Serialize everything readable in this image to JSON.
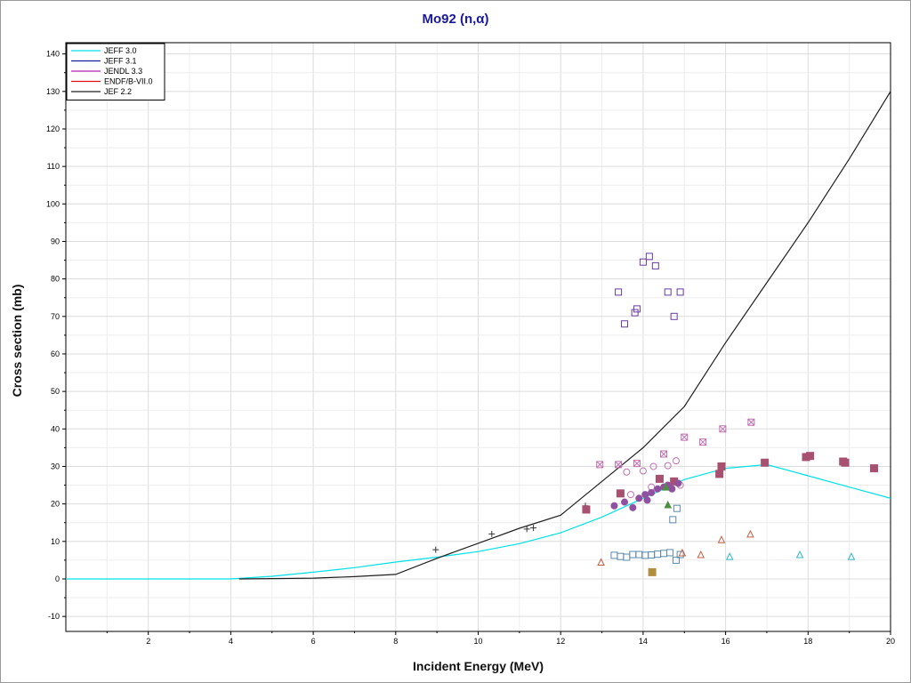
{
  "chart_data": {
    "type": "line",
    "title": "Mo92 (n,α)",
    "xlabel": "Incident Energy (MeV)",
    "ylabel": "Cross section (mb)",
    "xlim": [
      0,
      20
    ],
    "ylim": [
      -14,
      143
    ],
    "xticks": [
      2,
      4,
      6,
      8,
      10,
      12,
      14,
      16,
      18,
      20
    ],
    "yticks": [
      -10,
      0,
      10,
      20,
      30,
      40,
      50,
      60,
      70,
      80,
      90,
      100,
      110,
      120,
      130,
      140
    ],
    "grid": true,
    "legend_position": "top-left",
    "series": [
      {
        "name": "JEFF 3.0",
        "color": "#00e0e8",
        "x": [
          0,
          4,
          5,
          6,
          7,
          8,
          9,
          10,
          11,
          12,
          13,
          14,
          15,
          16,
          17,
          18,
          19,
          20
        ],
        "y": [
          0,
          0,
          0.7,
          1.8,
          3.0,
          4.5,
          5.8,
          7.3,
          9.4,
          12.3,
          16.5,
          21.5,
          26.5,
          29.5,
          30.5,
          27.5,
          24.5,
          21.5
        ]
      },
      {
        "name": "JEFF 3.1",
        "color": "#1a1aa0",
        "x": [],
        "y": []
      },
      {
        "name": "JENDL 3.3",
        "color": "#b020b0",
        "x": [],
        "y": []
      },
      {
        "name": "ENDF/B-VII.0",
        "color": "#e01010",
        "x": [],
        "y": []
      },
      {
        "name": "JEF 2.2",
        "color": "#202020",
        "x": [
          4.2,
          6,
          7,
          8,
          9,
          10,
          11,
          12,
          13,
          14,
          15,
          16,
          17,
          18,
          19,
          20
        ],
        "y": [
          0,
          0.2,
          0.6,
          1.2,
          5.5,
          9.5,
          13.5,
          17,
          26,
          35,
          46,
          63,
          79,
          95,
          112,
          130
        ]
      }
    ],
    "experimental_data": [
      {
        "marker": "plus",
        "color": "#333333",
        "points": [
          [
            8.97,
            7.8
          ],
          [
            10.33,
            12
          ],
          [
            11.18,
            13.3
          ],
          [
            11.34,
            13.6
          ],
          [
            12.6,
            19.5
          ]
        ]
      },
      {
        "marker": "square",
        "color": "#6a3aa0",
        "points": [
          [
            13.4,
            76.5
          ],
          [
            13.55,
            68
          ],
          [
            13.8,
            71
          ],
          [
            13.85,
            72
          ],
          [
            14.0,
            84.5
          ],
          [
            14.15,
            86
          ],
          [
            14.3,
            83.5
          ],
          [
            14.6,
            76.5
          ],
          [
            14.75,
            70
          ],
          [
            14.9,
            76.5
          ]
        ]
      },
      {
        "marker": "square-filled",
        "color": "#a85070",
        "points": [
          [
            12.62,
            18.5
          ],
          [
            13.45,
            22.8
          ],
          [
            14.4,
            26.7
          ],
          [
            14.75,
            26
          ],
          [
            15.85,
            28
          ],
          [
            15.9,
            30
          ],
          [
            16.95,
            31
          ],
          [
            17.95,
            32.5
          ],
          [
            18.05,
            32.8
          ],
          [
            18.85,
            31.3
          ],
          [
            18.9,
            31
          ],
          [
            19.6,
            29.5
          ]
        ]
      },
      {
        "marker": "square-crossed",
        "color": "#c070b0",
        "points": [
          [
            12.95,
            30.5
          ],
          [
            13.4,
            30.5
          ],
          [
            13.85,
            30.8
          ],
          [
            14.5,
            33.3
          ],
          [
            15.0,
            37.8
          ],
          [
            15.45,
            36.5
          ],
          [
            15.93,
            40
          ],
          [
            16.62,
            41.8
          ]
        ]
      },
      {
        "marker": "circle",
        "color": "#c070b0",
        "points": [
          [
            13.6,
            28.5
          ],
          [
            14.0,
            28.8
          ],
          [
            14.25,
            30
          ],
          [
            14.6,
            30.2
          ],
          [
            14.8,
            31.5
          ],
          [
            13.7,
            22.5
          ],
          [
            14.2,
            24.5
          ],
          [
            14.9,
            25
          ]
        ]
      },
      {
        "marker": "circle-filled",
        "color": "#9050a0",
        "points": [
          [
            13.3,
            19.5
          ],
          [
            13.55,
            20.5
          ],
          [
            13.75,
            19
          ],
          [
            13.9,
            21.5
          ],
          [
            14.05,
            22.5
          ],
          [
            14.2,
            23
          ],
          [
            14.35,
            24
          ],
          [
            14.5,
            24.5
          ],
          [
            14.6,
            25
          ],
          [
            14.7,
            24
          ],
          [
            14.85,
            25.5
          ],
          [
            14.1,
            21
          ]
        ]
      },
      {
        "marker": "square",
        "color": "#5a8ab0",
        "points": [
          [
            13.3,
            6.3
          ],
          [
            13.45,
            6
          ],
          [
            13.6,
            5.8
          ],
          [
            13.75,
            6.5
          ],
          [
            13.9,
            6.5
          ],
          [
            14.05,
            6.3
          ],
          [
            14.2,
            6.4
          ],
          [
            14.35,
            6.6
          ],
          [
            14.5,
            6.8
          ],
          [
            14.65,
            7
          ],
          [
            14.8,
            5
          ],
          [
            14.9,
            6.5
          ],
          [
            14.72,
            15.8
          ],
          [
            14.82,
            18.8
          ]
        ]
      },
      {
        "marker": "triangle",
        "color": "#c06040",
        "points": [
          [
            12.98,
            4.5
          ],
          [
            14.95,
            7
          ],
          [
            15.4,
            6.5
          ],
          [
            15.9,
            10.5
          ],
          [
            16.6,
            12
          ]
        ]
      },
      {
        "marker": "triangle",
        "color": "#30b8c8",
        "points": [
          [
            16.1,
            6
          ],
          [
            17.8,
            6.5
          ],
          [
            19.05,
            6
          ]
        ]
      },
      {
        "marker": "triangle-filled",
        "color": "#4a9040",
        "points": [
          [
            14.6,
            19.8
          ],
          [
            14.55,
            24.5
          ]
        ]
      },
      {
        "marker": "square-filled",
        "color": "#b09040",
        "points": [
          [
            14.22,
            1.8
          ]
        ]
      }
    ]
  }
}
